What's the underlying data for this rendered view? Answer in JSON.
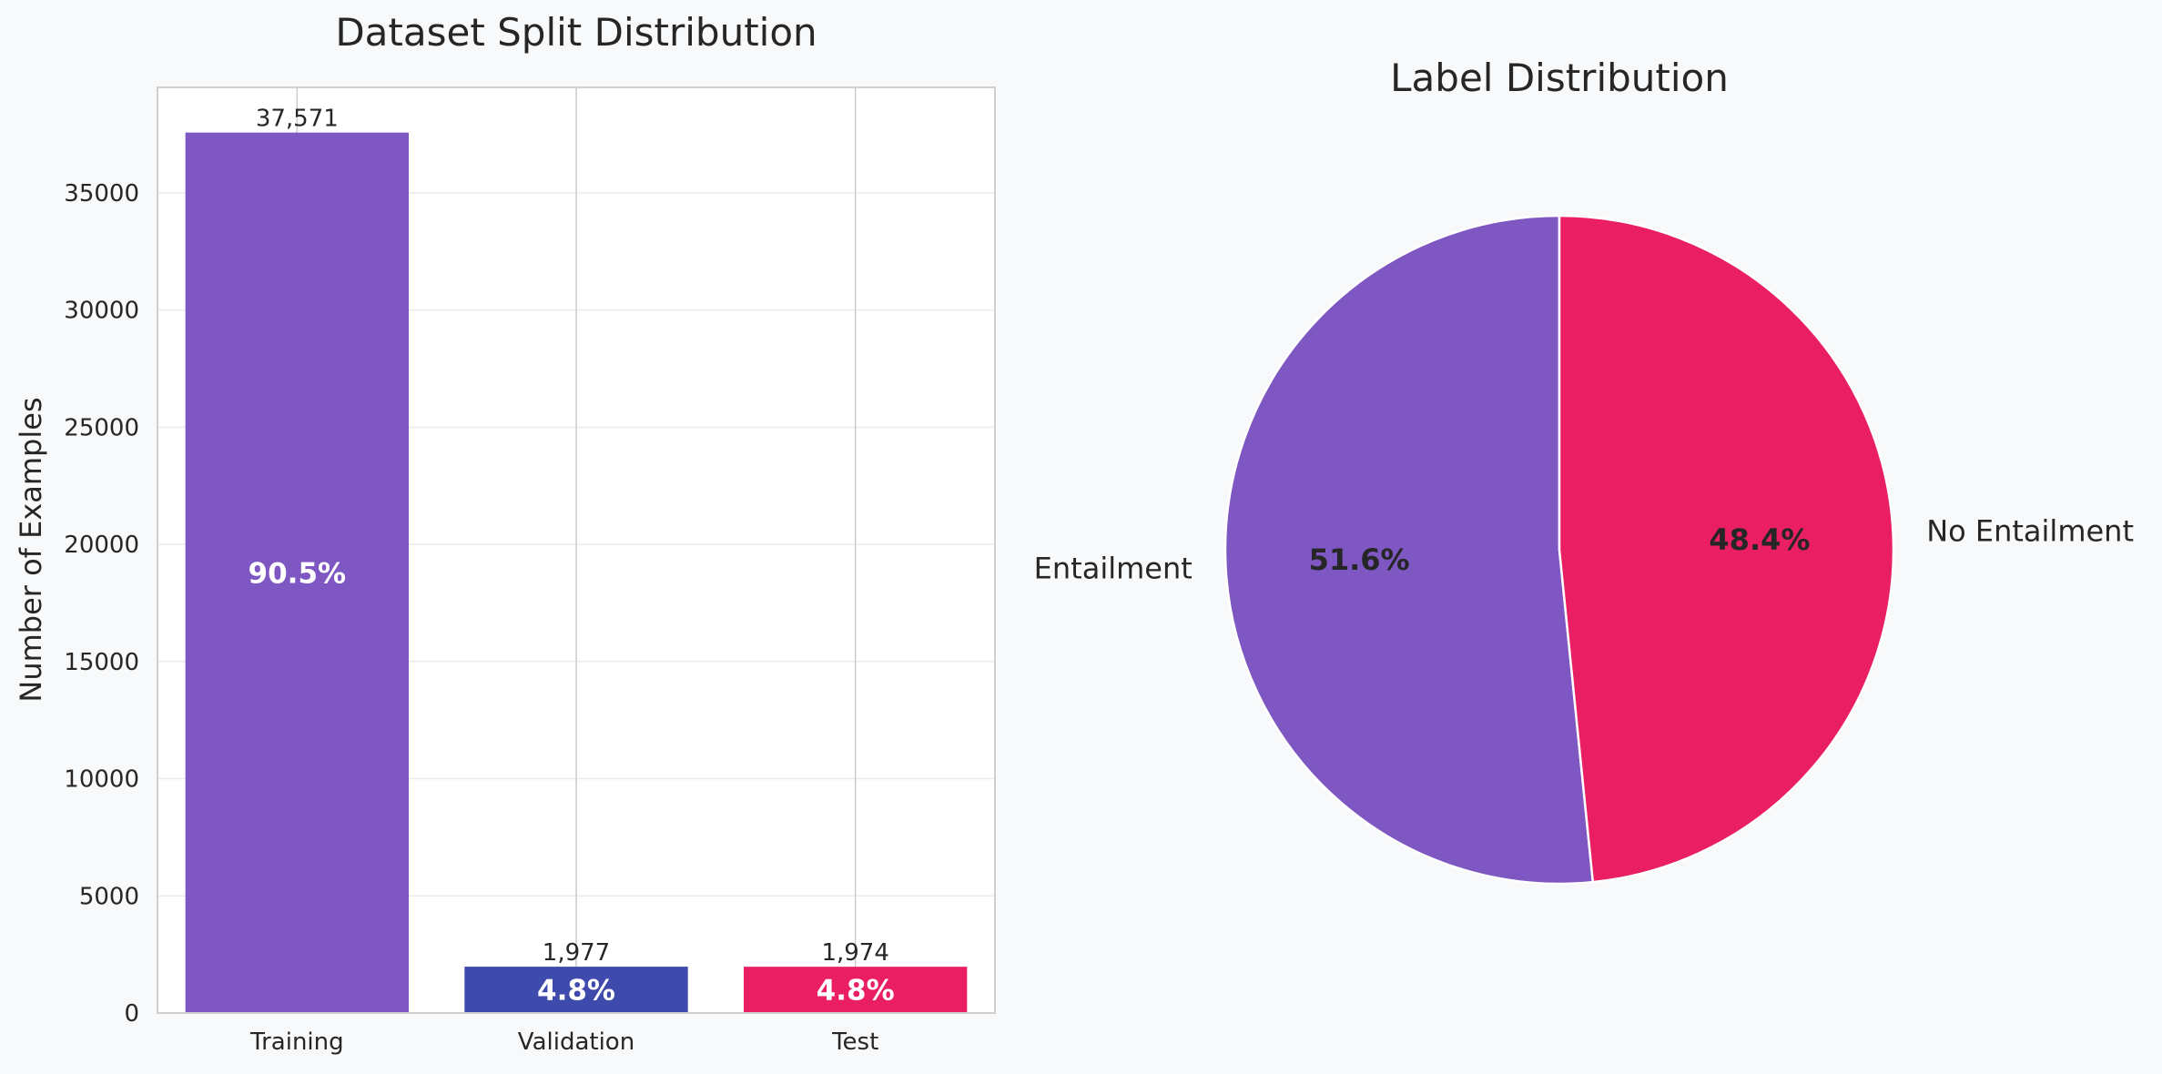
{
  "chart_data": [
    {
      "type": "bar",
      "title": "Dataset Split Distribution",
      "xlabel": "",
      "ylabel": "Number of Examples",
      "categories": [
        "Training",
        "Validation",
        "Test"
      ],
      "values": [
        37571,
        1977,
        1974
      ],
      "value_labels": [
        "37,571",
        "1,977",
        "1,974"
      ],
      "percent_labels": [
        "90.5%",
        "4.8%",
        "4.8%"
      ],
      "colors": [
        "#7e57c2",
        "#3f4aad",
        "#e91e63"
      ],
      "ylim": [
        0,
        39500
      ],
      "yticks": [
        0,
        5000,
        10000,
        15000,
        20000,
        25000,
        30000,
        35000
      ],
      "ytick_labels": [
        "0",
        "5000",
        "10000",
        "15000",
        "20000",
        "25000",
        "30000",
        "35000"
      ],
      "grid": true
    },
    {
      "type": "pie",
      "title": "Label Distribution",
      "labels": [
        "Entailment",
        "No Entailment"
      ],
      "values": [
        51.6,
        48.4
      ],
      "percent_labels": [
        "51.6%",
        "48.4%"
      ],
      "colors": [
        "#7e57c2",
        "#e91e63"
      ],
      "start_angle_deg": 90,
      "direction": "counterclockwise"
    }
  ]
}
